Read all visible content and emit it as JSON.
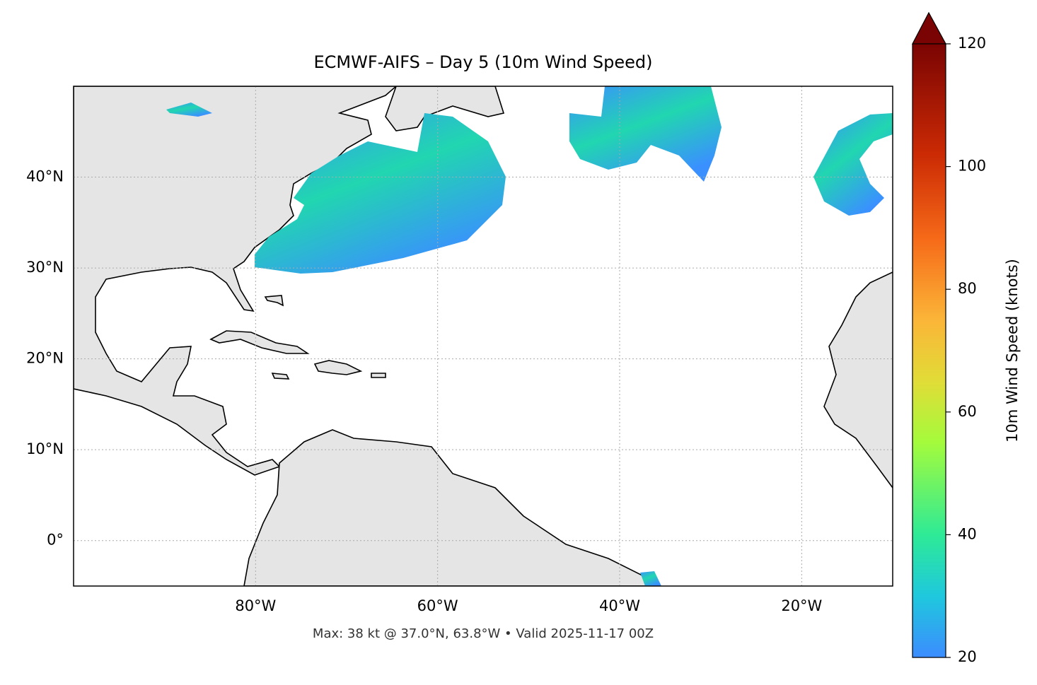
{
  "title": "ECMWF-AIFS – Day 5 (10m Wind Speed)",
  "footer": "Max: 38 kt @ 37.0°N, 63.8°W • Valid 2025-11-17 00Z",
  "map": {
    "xlim": [
      -100,
      -10
    ],
    "ylim": [
      -5,
      50
    ],
    "xticks": [
      {
        "value": -80,
        "label": "80°W"
      },
      {
        "value": -60,
        "label": "60°W"
      },
      {
        "value": -40,
        "label": "40°W"
      },
      {
        "value": -20,
        "label": "20°W"
      }
    ],
    "yticks": [
      {
        "value": 0,
        "label": "0°"
      },
      {
        "value": 10,
        "label": "10°N"
      },
      {
        "value": 20,
        "label": "20°N"
      },
      {
        "value": 30,
        "label": "30°N"
      },
      {
        "value": 40,
        "label": "40°N"
      }
    ],
    "grid": true
  },
  "colorbar": {
    "label": "10m Wind Speed (knots)",
    "lim": [
      20,
      120
    ],
    "ticks": [
      20,
      40,
      60,
      80,
      100,
      120
    ]
  }
}
